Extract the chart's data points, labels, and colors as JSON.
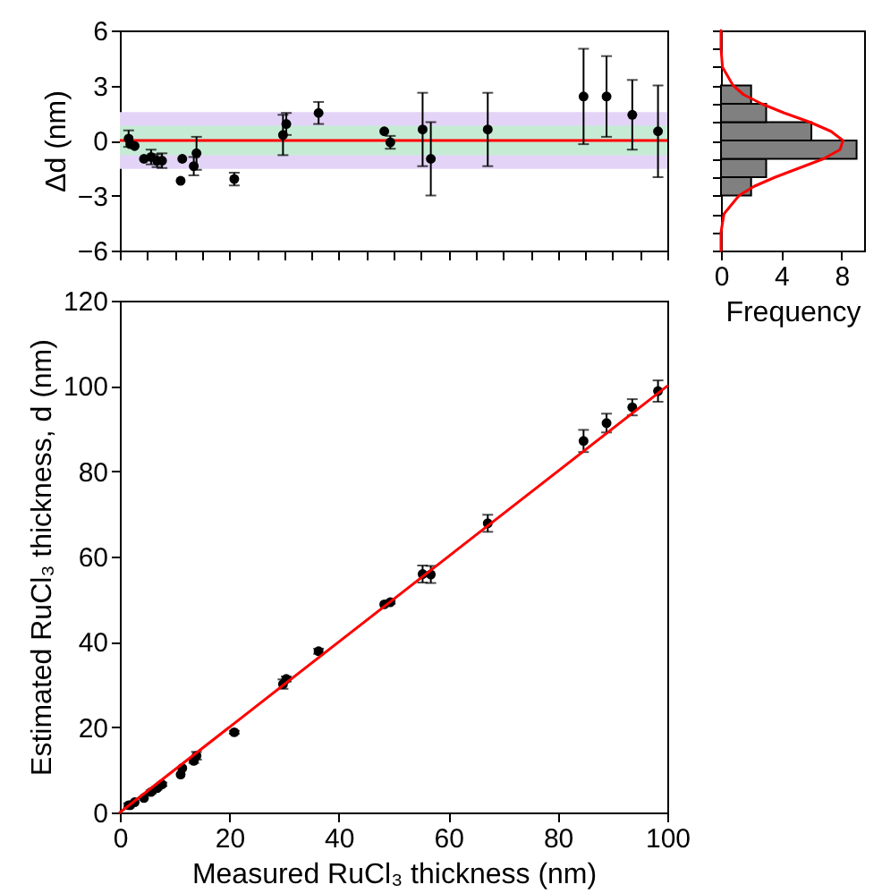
{
  "chart_data": [
    {
      "type": "scatter",
      "ylabel": "Δd (nm)",
      "color": "#000000",
      "marker": "circle",
      "tick_labels": "y",
      "x": [
        1.6,
        1.9,
        2.7,
        4.4,
        5.7,
        6.8,
        7.7,
        11.1,
        11.4,
        13.5,
        14.0,
        20.9,
        29.8,
        30.4,
        36.3,
        48.3,
        49.4,
        55.3,
        56.8,
        67.2,
        84.7,
        88.9,
        93.6,
        98.3
      ],
      "values": [
        0.1,
        -0.2,
        -0.3,
        -1.0,
        -0.9,
        -1.1,
        -1.1,
        -2.2,
        -1.0,
        -1.4,
        -0.7,
        -2.1,
        0.3,
        0.9,
        1.5,
        0.5,
        -0.1,
        0.6,
        -1.0,
        0.6,
        2.4,
        2.4,
        1.4,
        0.5
      ],
      "errors": [
        0.45,
        null,
        null,
        null,
        0.4,
        0.35,
        0.4,
        null,
        null,
        0.5,
        0.9,
        0.35,
        1.1,
        0.6,
        0.6,
        null,
        0.35,
        2.0,
        2.0,
        2.0,
        2.6,
        2.2,
        1.9,
        2.5
      ],
      "xlim": [
        0,
        100
      ],
      "xticks": [
        0,
        5,
        10,
        15,
        20,
        25,
        30,
        35,
        40,
        45,
        50,
        55,
        60,
        65,
        70,
        75,
        80,
        85,
        90,
        95,
        100
      ],
      "ylim": [
        -6,
        6
      ],
      "yticks": [
        -6,
        -3,
        0,
        3,
        6
      ],
      "bands": [
        {
          "axis": "y",
          "from": -1.55,
          "to": 1.55,
          "color": "#e3d4f7"
        },
        {
          "axis": "y",
          "from": -0.8,
          "to": 0.8,
          "color": "#c6ebd5"
        }
      ],
      "ref_lines": [
        {
          "axis": "y",
          "value": 0,
          "color": "#ff0000"
        }
      ]
    },
    {
      "type": "histogram",
      "orientation": "horizontal",
      "xlabel": "Frequency",
      "tick_labels": "x",
      "bins": [
        -3,
        -2,
        -1,
        0,
        1,
        2,
        3
      ],
      "series": [
        {
          "type": "histogram",
          "color": "#808080",
          "values": [
            2,
            3,
            9,
            6,
            3,
            2
          ]
        },
        {
          "type": "line",
          "color": "#ff0000",
          "x": [
            -6,
            -5,
            -4,
            -3,
            -2.5,
            -2,
            -1.5,
            -1,
            -0.5,
            0,
            0.5,
            1,
            1.5,
            2,
            2.5,
            3,
            4,
            5,
            6
          ],
          "values": [
            0,
            0,
            0.2,
            1.2,
            2.2,
            3.6,
            5.2,
            6.8,
            7.9,
            8.1,
            7.3,
            5.9,
            4.2,
            2.7,
            1.5,
            0.8,
            0.1,
            0,
            0
          ]
        }
      ],
      "xlim": [
        0,
        9.5
      ],
      "xticks": [
        0,
        4,
        8
      ],
      "ylim": [
        -6,
        6
      ],
      "yticks": [
        -6,
        -5,
        -4,
        -3,
        -2,
        -1,
        0,
        1,
        2,
        3,
        4,
        5,
        6
      ]
    },
    {
      "type": "scatter",
      "xlabel": "Measured RuCl₃ thickness (nm)",
      "ylabel": "Estimated RuCl₃ thickness, d (nm)",
      "series": [
        {
          "type": "scatter",
          "color": "#000000",
          "marker": "circle",
          "x": [
            1.6,
            1.9,
            2.7,
            4.4,
            5.7,
            6.8,
            7.7,
            11.1,
            11.4,
            13.5,
            14.0,
            20.9,
            29.8,
            30.4,
            36.3,
            48.3,
            49.4,
            55.3,
            56.8,
            67.2,
            84.7,
            88.9,
            93.6,
            98.3
          ],
          "values": [
            1.7,
            1.7,
            2.4,
            3.4,
            4.8,
            5.7,
            6.6,
            8.9,
            10.4,
            12.1,
            13.3,
            18.8,
            30.1,
            31.3,
            37.8,
            48.8,
            49.3,
            55.9,
            55.8,
            67.8,
            87.1,
            91.3,
            95.0,
            98.8
          ],
          "errors": [
            0.45,
            null,
            null,
            null,
            0.4,
            0.35,
            0.4,
            null,
            null,
            0.5,
            0.9,
            0.35,
            1.1,
            0.6,
            0.6,
            null,
            0.35,
            2.0,
            2.0,
            2.0,
            2.6,
            2.2,
            1.9,
            2.5
          ]
        },
        {
          "type": "line",
          "color": "#ff0000",
          "x": [
            0,
            100
          ],
          "values": [
            0,
            100
          ]
        }
      ],
      "xlim": [
        0,
        100
      ],
      "xticks": [
        0,
        20,
        40,
        60,
        80,
        100
      ],
      "ylim": [
        0,
        120
      ],
      "yticks": [
        0,
        20,
        40,
        60,
        80,
        100,
        120
      ]
    }
  ]
}
